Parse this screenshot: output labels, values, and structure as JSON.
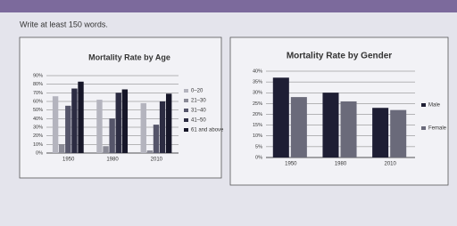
{
  "instruction": "Write at least 150 words.",
  "chart_data": [
    {
      "type": "bar",
      "title": "Mortality Rate by Age",
      "categories": [
        "1950",
        "1980",
        "2010"
      ],
      "series": [
        {
          "name": "0–20",
          "color": "#b4b4be",
          "values": [
            66,
            62,
            58
          ]
        },
        {
          "name": "21–30",
          "color": "#8a8a96",
          "values": [
            10,
            8,
            3
          ]
        },
        {
          "name": "31–40",
          "color": "#55556a",
          "values": [
            55,
            40,
            33
          ]
        },
        {
          "name": "41–50",
          "color": "#2c2c42",
          "values": [
            75,
            70,
            60
          ]
        },
        {
          "name": "61 and above",
          "color": "#161628",
          "values": [
            83,
            74,
            69
          ]
        }
      ],
      "ylim": [
        0,
        90
      ],
      "yticks": [
        {
          "value": 0,
          "label": "0%"
        },
        {
          "value": 10,
          "label": "10%"
        },
        {
          "value": 20,
          "label": "20%"
        },
        {
          "value": 30,
          "label": "30%"
        },
        {
          "value": 40,
          "label": "40%"
        },
        {
          "value": 50,
          "label": "50%"
        },
        {
          "value": 60,
          "label": "60%"
        },
        {
          "value": 70,
          "label": "70%"
        },
        {
          "value": 80,
          "label": "80%"
        },
        {
          "value": 90,
          "label": "90%"
        }
      ],
      "grid": true,
      "legend": "right"
    },
    {
      "type": "bar",
      "title": "Mortality Rate by Gender",
      "categories": [
        "1950",
        "1980",
        "2010"
      ],
      "series": [
        {
          "name": "Male",
          "color": "#1e1e34",
          "values": [
            37,
            30,
            23
          ]
        },
        {
          "name": "Female",
          "color": "#6a6a7a",
          "values": [
            28,
            26,
            22
          ]
        }
      ],
      "ylim": [
        0,
        40
      ],
      "yticks": [
        {
          "value": 0,
          "label": "0%"
        },
        {
          "value": 5,
          "label": "5%"
        },
        {
          "value": 10,
          "label": "10%"
        },
        {
          "value": 15,
          "label": "15%"
        },
        {
          "value": 20,
          "label": "20%"
        },
        {
          "value": 25,
          "label": "25%"
        },
        {
          "value": 30,
          "label": "30%"
        },
        {
          "value": 35,
          "label": "35%"
        },
        {
          "value": 40,
          "label": "40%"
        }
      ],
      "grid": true,
      "legend": "right"
    }
  ]
}
